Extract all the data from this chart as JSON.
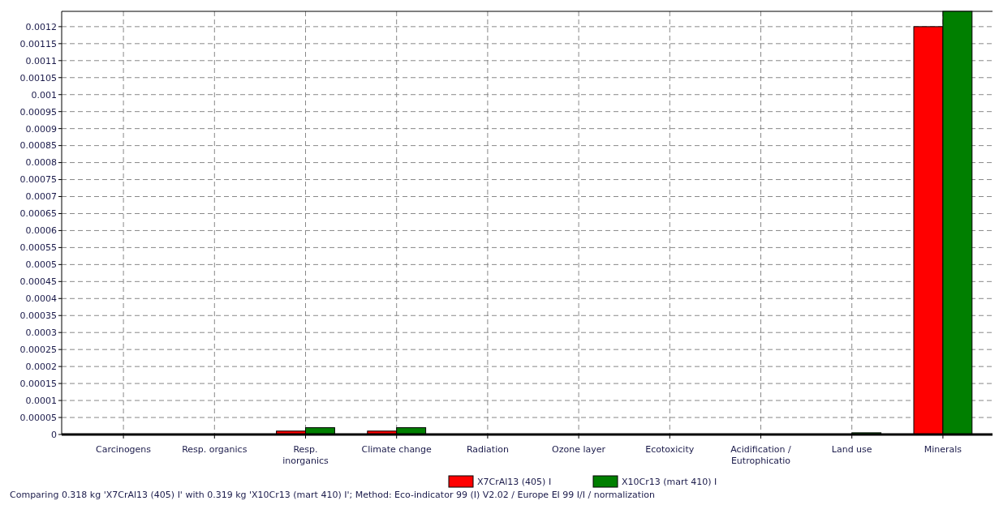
{
  "chart_data": {
    "type": "bar",
    "categories": [
      "Carcinogens",
      "Resp. organics",
      "Resp. inorganics",
      "Climate change",
      "Radiation",
      "Ozone layer",
      "Ecotoxicity",
      "Acidification / Eutrophicatio",
      "Land use",
      "Minerals"
    ],
    "series": [
      {
        "name": "X7CrAl13 (405) I",
        "color": "#ff0000",
        "values": [
          0,
          0,
          1e-05,
          1e-05,
          0,
          0,
          0,
          0,
          0,
          0.0012
        ]
      },
      {
        "name": "X10Cr13 (mart 410) I",
        "color": "#007f00",
        "values": [
          0,
          0,
          2e-05,
          2e-05,
          0,
          0,
          0,
          0,
          5e-06,
          0.001245
        ]
      }
    ],
    "ylim": [
      0,
      0.001245
    ],
    "yticks": [
      0,
      {
        "value": 5e-05,
        "label": "0.00005"
      },
      0.0001,
      0.00015,
      0.0002,
      0.00025,
      0.0003,
      0.00035,
      0.0004,
      0.00045,
      0.0005,
      0.00055,
      0.0006,
      0.00065,
      0.0007,
      0.00075,
      0.0008,
      0.00085,
      0.0009,
      0.00095,
      0.001,
      0.00105,
      0.0011,
      0.00115,
      0.0012
    ],
    "grid": true,
    "legend": "bottom",
    "annotations": [
      "Comparing 0.318 kg 'X7CrAl13 (405) I' with 0.319 kg 'X10Cr13 (mart 410) I';  Method: Eco-indicator 99 (I) V2.02 /  Europe EI 99 I/I / normalization"
    ]
  }
}
